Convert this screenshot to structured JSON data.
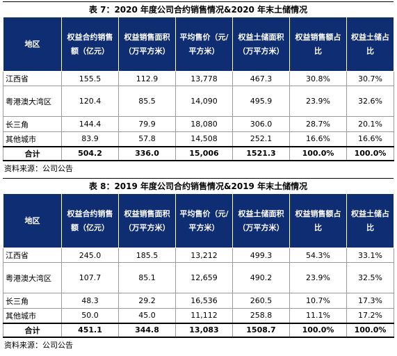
{
  "tables": [
    {
      "caption": "表 7：2020 年度公司合约销售情况&2020 年末土储情况",
      "headers": [
        "地区",
        "权益合约销售额（亿元）",
        "权益销售面积（万平方米）",
        "平均售价（元/平方米）",
        "权益土储面积（万平方米）",
        "权益销售额占比",
        "权益土储占比"
      ],
      "rows": [
        [
          "江西省",
          "155.5",
          "112.9",
          "13,778",
          "467.3",
          "30.8%",
          "30.7%"
        ],
        [
          "粤港澳大湾区",
          "120.4",
          "85.5",
          "14,090",
          "495.9",
          "23.9%",
          "32.6%"
        ],
        [
          "长三角",
          "144.4",
          "79.9",
          "18,080",
          "306.0",
          "28.7%",
          "20.1%"
        ],
        [
          "其他城市",
          "83.9",
          "57.8",
          "14,508",
          "252.1",
          "16.6%",
          "16.6%"
        ]
      ],
      "total": [
        "合计",
        "504.2",
        "336.0",
        "15,006",
        "1521.3",
        "100.0%",
        "100.0%"
      ],
      "source": "资料来源：公司公告"
    },
    {
      "caption": "表 8：2019 年度公司合约销售情况&2019 年末土储情况",
      "headers": [
        "地区",
        "权益合约销售额（亿元）",
        "权益销售面积（万平方米）",
        "平均售价（元/平方米）",
        "权益土储面积（万平方米）",
        "权益销售额占比",
        "权益土储占比"
      ],
      "rows": [
        [
          "江西省",
          "245.0",
          "185.5",
          "13,212",
          "499.3",
          "54.3%",
          "33.1%"
        ],
        [
          "粤港澳大湾区",
          "107.7",
          "85.1",
          "12,659",
          "490.2",
          "23.9%",
          "32.5%"
        ],
        [
          "长三角",
          "48.3",
          "29.2",
          "16,536",
          "260.5",
          "10.7%",
          "17.3%"
        ],
        [
          "其他城市",
          "50.0",
          "45.0",
          "11,112",
          "258.8",
          "11.1%",
          "17.2%"
        ]
      ],
      "total": [
        "合计",
        "451.1",
        "344.8",
        "13,083",
        "1508.7",
        "100.0%",
        "100.0%"
      ],
      "source": "资料来源：公司公告"
    }
  ]
}
